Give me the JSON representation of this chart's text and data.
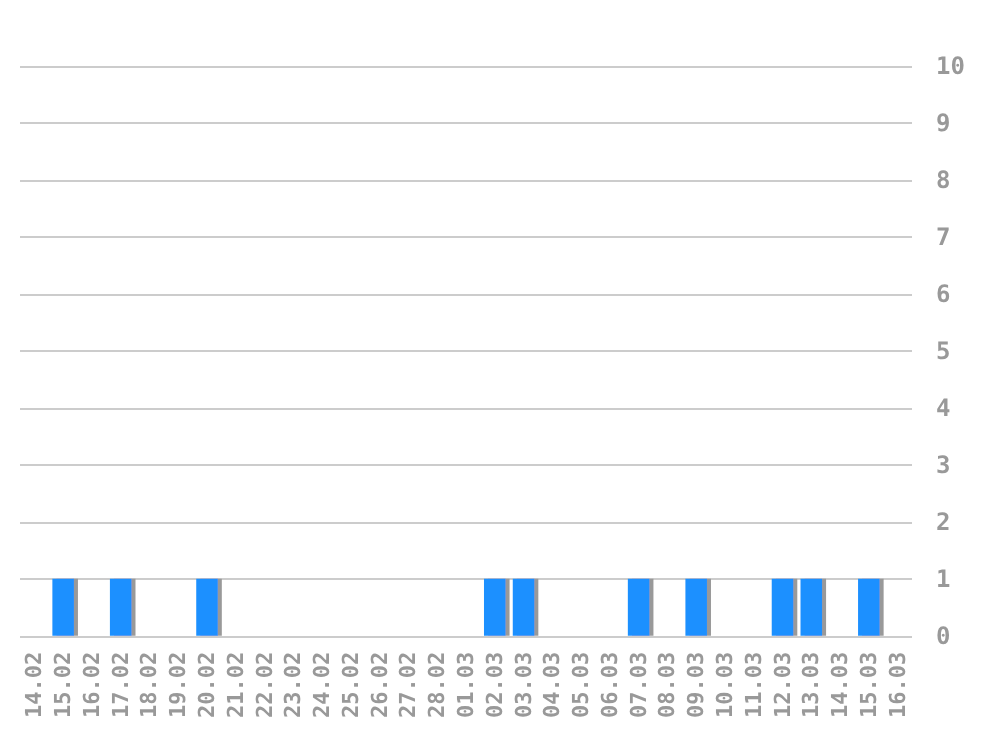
{
  "chart_data": {
    "type": "bar",
    "categories": [
      "14.02",
      "15.02",
      "16.02",
      "17.02",
      "18.02",
      "19.02",
      "20.02",
      "21.02",
      "22.02",
      "23.02",
      "24.02",
      "25.02",
      "26.02",
      "27.02",
      "28.02",
      "01.03",
      "02.03",
      "03.03",
      "04.03",
      "05.03",
      "06.03",
      "07.03",
      "08.03",
      "09.03",
      "10.03",
      "11.03",
      "12.03",
      "13.03",
      "14.03",
      "15.03",
      "16.03"
    ],
    "values": [
      0,
      1,
      0,
      1,
      0,
      0,
      1,
      0,
      0,
      0,
      0,
      0,
      0,
      0,
      0,
      0,
      1,
      1,
      0,
      0,
      0,
      1,
      0,
      1,
      0,
      0,
      1,
      1,
      0,
      1,
      0
    ],
    "color": "#1e90ff",
    "ylim": [
      0,
      10
    ],
    "yticks": [
      0,
      1,
      2,
      3,
      4,
      5,
      6,
      7,
      8,
      9,
      10
    ],
    "grid": "y"
  }
}
